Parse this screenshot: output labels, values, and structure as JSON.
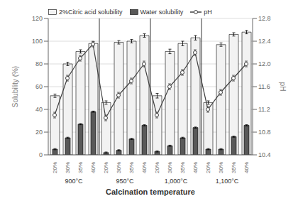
{
  "chart_data": {
    "type": "bar",
    "xlabel": "Calcination temperature",
    "ylabel": "Solubility (%)",
    "y2label": "pH",
    "categories": [
      "20%",
      "30%",
      "35%",
      "40%",
      "20%",
      "30%",
      "35%",
      "40%",
      "20%",
      "30%",
      "35%",
      "40%",
      "20%",
      "30%",
      "35%",
      "40%"
    ],
    "groups": [
      "900°C",
      "950°C",
      "1,000°C",
      "1,100°C"
    ],
    "series": [
      {
        "name": "2%Citric acid solubility",
        "type": "bar",
        "color": "#f2f2f2",
        "values": [
          52,
          80,
          91,
          98,
          46,
          99,
          100,
          105,
          52,
          91,
          98,
          103,
          46,
          97,
          106,
          108
        ],
        "errors": [
          1.5,
          1.5,
          1.5,
          1.5,
          1.5,
          1.5,
          1.5,
          1.5,
          2.0,
          2.0,
          2.0,
          2.0,
          1.5,
          1.5,
          1.5,
          1.5
        ]
      },
      {
        "name": "Water solubility",
        "type": "bar",
        "color": "#595959",
        "values": [
          5,
          15,
          27,
          38,
          2,
          4,
          14,
          26,
          3,
          8,
          15,
          24,
          5,
          5,
          16,
          26
        ],
        "errors": [
          0.5,
          0.5,
          0.5,
          0.5,
          0.5,
          0.5,
          0.5,
          0.5,
          0.5,
          0.5,
          0.5,
          0.5,
          0.5,
          0.5,
          0.5,
          0.5
        ]
      },
      {
        "name": "pH",
        "type": "line",
        "axis": "y2",
        "color": "#404040",
        "marker": "circle",
        "line_style": "solid",
        "values": [
          11.1,
          11.75,
          12.1,
          12.35,
          11.05,
          11.45,
          11.7,
          12.0,
          11.1,
          11.6,
          11.85,
          12.2,
          11.2,
          11.5,
          11.75,
          12.0
        ],
        "errors": [
          0.05,
          0.05,
          0.05,
          0.05,
          0.05,
          0.05,
          0.05,
          0.05,
          0.05,
          0.05,
          0.05,
          0.05,
          0.05,
          0.05,
          0.05,
          0.05
        ]
      }
    ],
    "ylim": [
      0,
      120
    ],
    "yticks": [
      0,
      20,
      40,
      60,
      80,
      100,
      120
    ],
    "y2lim": [
      10.4,
      12.8
    ],
    "y2ticks": [
      10.4,
      10.8,
      11.2,
      11.6,
      {
        "value": 12.0,
        "label": "12.0"
      },
      12.4,
      12.8
    ],
    "grid": true,
    "legend": "upper left"
  }
}
